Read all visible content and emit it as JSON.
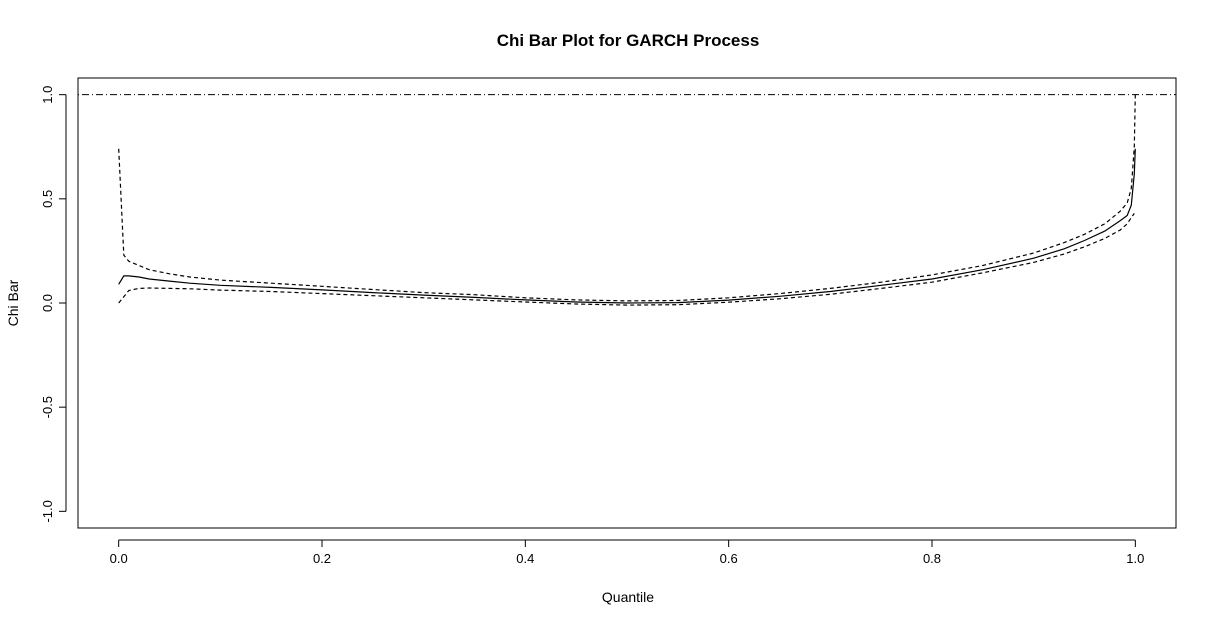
{
  "chart_data": {
    "type": "line",
    "title": "Chi Bar Plot for GARCH Process",
    "xlabel": "Quantile",
    "ylabel": "Chi Bar",
    "xlim": [
      -0.04,
      1.04
    ],
    "ylim": [
      -1.08,
      1.08
    ],
    "x_ticks": [
      0.0,
      0.2,
      0.4,
      0.6,
      0.8,
      1.0
    ],
    "x_tick_labels": [
      "0.0",
      "0.2",
      "0.4",
      "0.6",
      "0.8",
      "1.0"
    ],
    "y_ticks": [
      -1.0,
      -0.5,
      0.0,
      0.5,
      1.0
    ],
    "y_tick_labels": [
      "-1.0",
      "-0.5",
      "0.0",
      "0.5",
      "1.0"
    ],
    "reference_line": {
      "y": 1.0,
      "style": "dotdash"
    },
    "grid": false,
    "series": [
      {
        "style": "dashed",
        "x": [
          0.0,
          0.005,
          0.01,
          0.02,
          0.03,
          0.05,
          0.07,
          0.1,
          0.15,
          0.2,
          0.25,
          0.3,
          0.35,
          0.4,
          0.45,
          0.5,
          0.55,
          0.6,
          0.65,
          0.7,
          0.75,
          0.8,
          0.85,
          0.9,
          0.93,
          0.95,
          0.97,
          0.985,
          0.992,
          0.996,
          0.999,
          1.0
        ],
        "y": [
          0.74,
          0.23,
          0.2,
          0.18,
          0.16,
          0.14,
          0.125,
          0.11,
          0.095,
          0.08,
          0.065,
          0.05,
          0.04,
          0.025,
          0.015,
          0.01,
          0.012,
          0.025,
          0.045,
          0.07,
          0.1,
          0.135,
          0.18,
          0.24,
          0.29,
          0.33,
          0.38,
          0.44,
          0.48,
          0.55,
          0.75,
          1.0
        ]
      },
      {
        "style": "solid",
        "x": [
          0.0,
          0.005,
          0.01,
          0.02,
          0.03,
          0.05,
          0.07,
          0.1,
          0.15,
          0.2,
          0.25,
          0.3,
          0.35,
          0.4,
          0.45,
          0.5,
          0.55,
          0.6,
          0.65,
          0.7,
          0.75,
          0.8,
          0.85,
          0.9,
          0.93,
          0.95,
          0.97,
          0.985,
          0.992,
          0.996,
          0.999,
          1.0
        ],
        "y": [
          0.09,
          0.13,
          0.13,
          0.125,
          0.115,
          0.105,
          0.095,
          0.085,
          0.075,
          0.063,
          0.05,
          0.038,
          0.027,
          0.015,
          0.005,
          0.0,
          0.002,
          0.014,
          0.032,
          0.055,
          0.085,
          0.115,
          0.16,
          0.215,
          0.26,
          0.3,
          0.345,
          0.395,
          0.42,
          0.47,
          0.62,
          0.74
        ]
      },
      {
        "style": "dashed",
        "x": [
          0.0,
          0.005,
          0.01,
          0.02,
          0.03,
          0.05,
          0.07,
          0.1,
          0.15,
          0.2,
          0.25,
          0.3,
          0.35,
          0.4,
          0.45,
          0.5,
          0.55,
          0.6,
          0.65,
          0.7,
          0.75,
          0.8,
          0.85,
          0.9,
          0.93,
          0.95,
          0.97,
          0.985,
          0.992,
          0.996,
          0.999
        ],
        "y": [
          0.0,
          0.03,
          0.06,
          0.07,
          0.072,
          0.07,
          0.068,
          0.062,
          0.055,
          0.045,
          0.035,
          0.025,
          0.015,
          0.005,
          -0.005,
          -0.01,
          -0.008,
          0.004,
          0.02,
          0.042,
          0.07,
          0.1,
          0.145,
          0.195,
          0.235,
          0.27,
          0.31,
          0.35,
          0.38,
          0.41,
          0.43
        ]
      }
    ]
  }
}
